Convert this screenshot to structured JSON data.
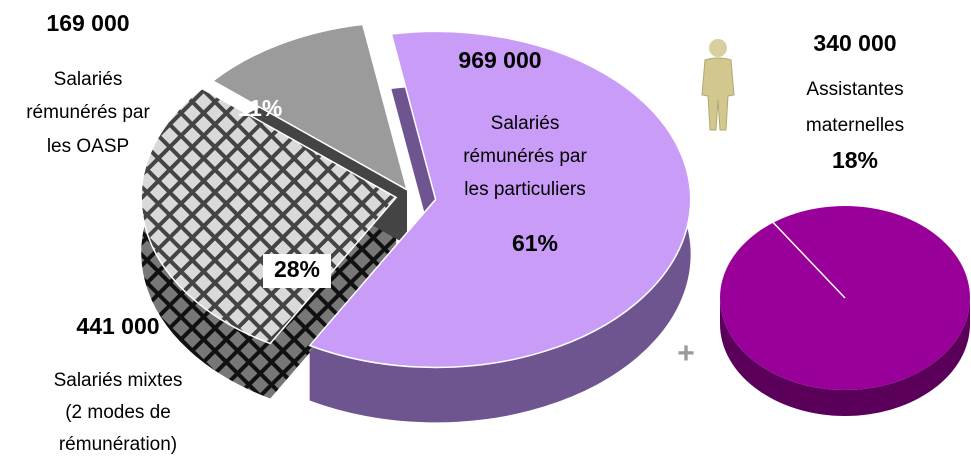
{
  "chart_data": [
    {
      "type": "pie",
      "categories": [
        [
          "Salariés",
          "rémunérés par",
          "les particuliers"
        ],
        [
          "Salariés mixtes",
          "(2 modes de",
          "rémunération)"
        ],
        [
          "Salariés",
          "rémunérés par",
          "les OASP"
        ]
      ],
      "values": [
        61,
        28,
        11
      ],
      "value_labels": [
        "61%",
        "28%",
        "11%"
      ],
      "counts": [
        969000,
        441000,
        169000
      ],
      "count_labels": [
        "969 000",
        "441 000",
        "169 000"
      ],
      "colors": [
        "#c99cf7",
        "pattern",
        "#9b9b9b"
      ]
    },
    {
      "type": "pie",
      "categories": [
        [
          "Assistantes",
          "maternelles"
        ]
      ],
      "values": [
        18
      ],
      "value_labels": [
        "18%"
      ],
      "counts": [
        340000
      ],
      "count_labels": [
        "340 000"
      ],
      "colors": [
        "#990099"
      ]
    }
  ],
  "connector": "+"
}
